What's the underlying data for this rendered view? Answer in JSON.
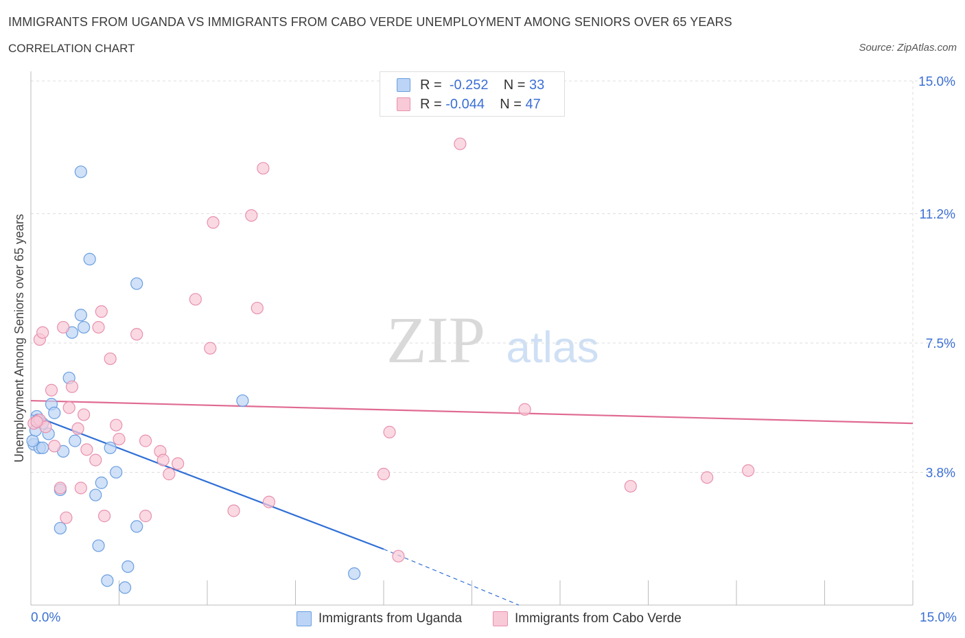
{
  "header": {
    "title": "IMMIGRANTS FROM UGANDA VS IMMIGRANTS FROM CABO VERDE UNEMPLOYMENT AMONG SENIORS OVER 65 YEARS",
    "subtitle": "CORRELATION CHART",
    "source": "Source: ZipAtlas.com"
  },
  "legend": {
    "r_label": "R =",
    "n_label": "N =",
    "uganda": {
      "r": "-0.252",
      "n": "33"
    },
    "cabo": {
      "r": "-0.044",
      "n": "47"
    }
  },
  "watermark": {
    "zip": "ZIP",
    "atlas": "atlas"
  },
  "colors": {
    "uganda_fill": "#bcd4f5",
    "uganda_stroke": "#6a9ee0",
    "uganda_line": "#2f6fd6",
    "cabo_fill": "#f8c9d7",
    "cabo_stroke": "#e890ad",
    "cabo_line": "#e06a92",
    "axis_text": "#3b6fd4",
    "grid": "#dddddd"
  },
  "chart_data": {
    "type": "scatter",
    "title": "IMMIGRANTS FROM UGANDA VS IMMIGRANTS FROM CABO VERDE UNEMPLOYMENT AMONG SENIORS OVER 65 YEARS",
    "xlabel": "",
    "ylabel": "Unemployment Among Seniors over 65 years",
    "xlim": [
      0,
      15
    ],
    "ylim": [
      0,
      15
    ],
    "x_tick_labels": [
      "0.0%",
      "15.0%"
    ],
    "y_ticks": [
      3.8,
      7.5,
      11.2,
      15.0
    ],
    "y_tick_labels": [
      "3.8%",
      "7.5%",
      "11.2%",
      "15.0%"
    ],
    "grid": true,
    "series": [
      {
        "name": "Immigrants from Uganda",
        "color": "#6a9ee0",
        "points": [
          [
            0.05,
            4.6
          ],
          [
            0.1,
            5.4
          ],
          [
            0.15,
            4.5
          ],
          [
            0.2,
            4.5
          ],
          [
            0.2,
            5.2
          ],
          [
            0.3,
            4.9
          ],
          [
            0.35,
            5.75
          ],
          [
            0.4,
            5.5
          ],
          [
            0.5,
            2.2
          ],
          [
            0.5,
            3.3
          ],
          [
            0.55,
            4.4
          ],
          [
            0.65,
            6.5
          ],
          [
            0.7,
            7.8
          ],
          [
            0.75,
            4.7
          ],
          [
            0.85,
            8.3
          ],
          [
            0.9,
            7.95
          ],
          [
            0.85,
            12.4
          ],
          [
            1.0,
            9.9
          ],
          [
            1.1,
            3.15
          ],
          [
            1.15,
            1.7
          ],
          [
            1.2,
            3.5
          ],
          [
            1.3,
            0.7
          ],
          [
            1.35,
            4.5
          ],
          [
            1.45,
            3.8
          ],
          [
            1.6,
            0.5
          ],
          [
            1.65,
            1.1
          ],
          [
            1.8,
            2.25
          ],
          [
            1.8,
            9.2
          ],
          [
            3.6,
            5.85
          ],
          [
            5.5,
            0.9
          ],
          [
            0.03,
            4.7
          ],
          [
            0.08,
            5.0
          ],
          [
            0.12,
            5.3
          ]
        ]
      },
      {
        "name": "Immigrants from Cabo Verde",
        "color": "#e890ad",
        "points": [
          [
            0.05,
            5.2
          ],
          [
            0.15,
            5.3
          ],
          [
            0.15,
            7.6
          ],
          [
            0.2,
            7.8
          ],
          [
            0.25,
            5.1
          ],
          [
            0.35,
            6.15
          ],
          [
            0.4,
            4.55
          ],
          [
            0.5,
            3.35
          ],
          [
            0.55,
            7.95
          ],
          [
            0.6,
            2.5
          ],
          [
            0.65,
            5.65
          ],
          [
            0.7,
            6.25
          ],
          [
            0.8,
            5.05
          ],
          [
            0.85,
            3.35
          ],
          [
            0.9,
            5.45
          ],
          [
            0.95,
            4.45
          ],
          [
            1.1,
            4.15
          ],
          [
            1.15,
            7.95
          ],
          [
            1.2,
            8.4
          ],
          [
            1.25,
            2.55
          ],
          [
            1.35,
            7.05
          ],
          [
            1.45,
            5.15
          ],
          [
            1.5,
            4.75
          ],
          [
            1.8,
            7.75
          ],
          [
            1.95,
            4.7
          ],
          [
            1.95,
            2.55
          ],
          [
            2.2,
            4.4
          ],
          [
            2.25,
            4.15
          ],
          [
            2.35,
            3.75
          ],
          [
            2.5,
            4.05
          ],
          [
            2.8,
            8.75
          ],
          [
            3.05,
            7.35
          ],
          [
            3.1,
            10.95
          ],
          [
            3.45,
            2.7
          ],
          [
            3.75,
            11.15
          ],
          [
            3.85,
            8.5
          ],
          [
            3.95,
            12.5
          ],
          [
            4.05,
            2.95
          ],
          [
            6.0,
            3.75
          ],
          [
            6.1,
            4.95
          ],
          [
            6.25,
            1.4
          ],
          [
            7.3,
            13.2
          ],
          [
            8.4,
            5.6
          ],
          [
            10.2,
            3.4
          ],
          [
            11.5,
            3.65
          ],
          [
            12.2,
            3.85
          ],
          [
            0.1,
            5.25
          ]
        ]
      }
    ],
    "trend_lines": [
      {
        "series": "Immigrants from Uganda",
        "from": [
          0,
          5.45
        ],
        "to": [
          6.0,
          1.6
        ],
        "dashed_to": [
          8.3,
          0.0
        ]
      },
      {
        "series": "Immigrants from Cabo Verde",
        "from": [
          0,
          5.85
        ],
        "to": [
          15.0,
          5.2
        ]
      }
    ]
  },
  "bottom_legend": {
    "uganda": "Immigrants from Uganda",
    "cabo": "Immigrants from Cabo Verde"
  }
}
